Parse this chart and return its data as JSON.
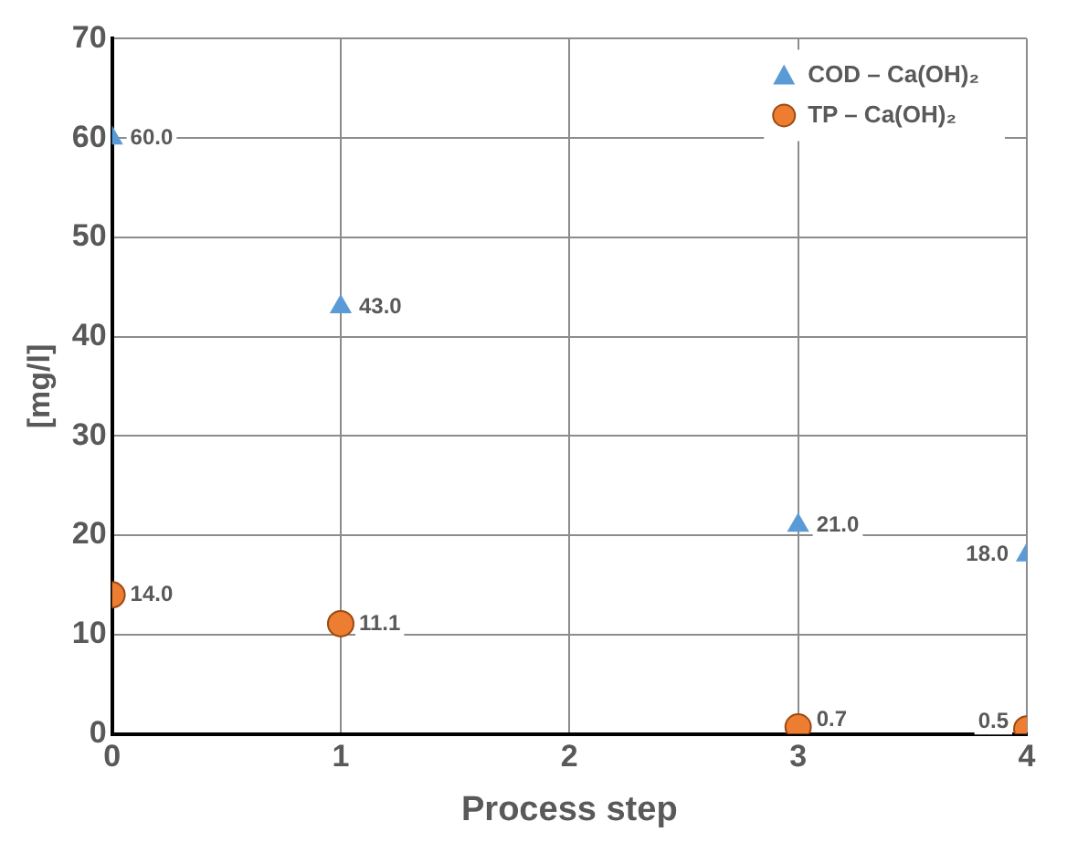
{
  "chart_data": {
    "type": "scatter",
    "xlabel": "Process step",
    "ylabel": "[mg/l]",
    "xlim": [
      0,
      4
    ],
    "xticks": [
      0,
      1,
      2,
      3,
      4
    ],
    "ylim": [
      0,
      70
    ],
    "yticks": [
      0,
      10,
      20,
      30,
      40,
      50,
      60,
      70
    ],
    "grid": true,
    "legend": "top right",
    "series": [
      {
        "name": "COD – Ca(OH)₂",
        "color": "#5b9bd5",
        "marker": "triangle",
        "x": [
          0,
          1,
          3,
          4
        ],
        "values": [
          60,
          43,
          21,
          18
        ],
        "value_labels": [
          "60.0",
          "43.0",
          "21.0",
          "18.0"
        ]
      },
      {
        "name": "TP – Ca(OH)₂",
        "color": "#ed7d31",
        "marker": "circle",
        "x": [
          0,
          1,
          3,
          4
        ],
        "values": [
          14,
          11.1,
          0.7,
          0.5
        ],
        "value_labels": [
          "14.0",
          "11.1",
          "0.7",
          "0.5"
        ]
      }
    ]
  }
}
